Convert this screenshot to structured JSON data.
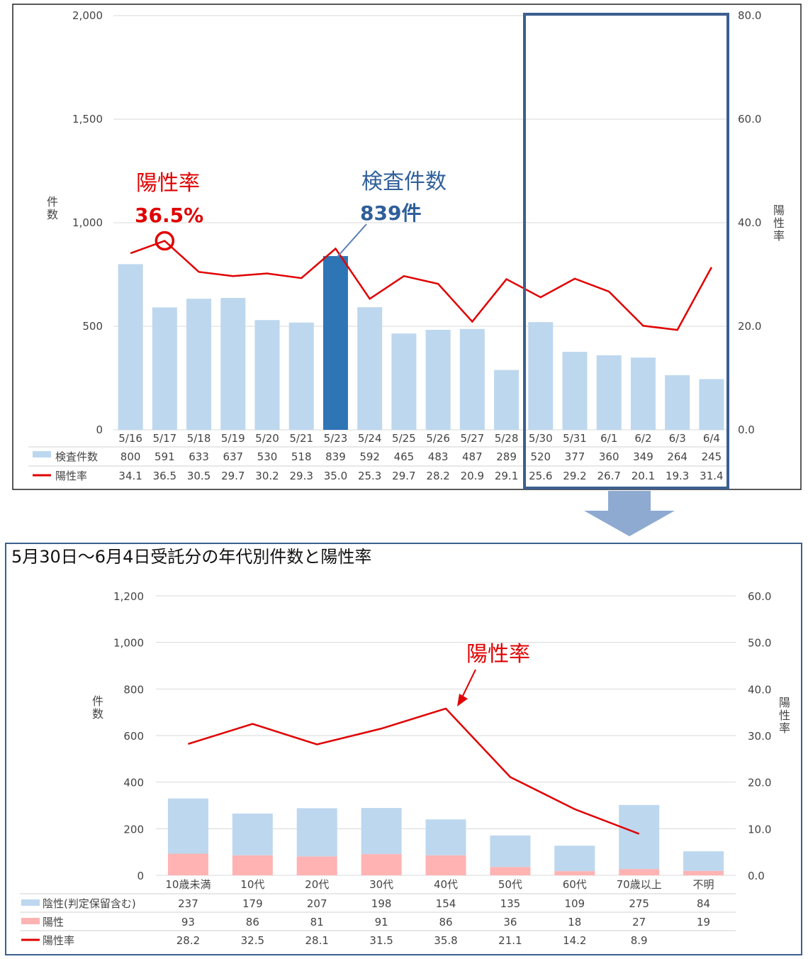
{
  "chart_data": [
    {
      "type": "bar",
      "categories": [
        "5/16",
        "5/17",
        "5/18",
        "5/19",
        "5/20",
        "5/21",
        "5/23",
        "5/24",
        "5/25",
        "5/26",
        "5/27",
        "5/28",
        "5/30",
        "5/31",
        "6/1",
        "6/2",
        "6/3",
        "6/4"
      ],
      "series": [
        {
          "name": "検査件数",
          "type": "bar",
          "axis": "left",
          "color": "#bdd7ee",
          "highlight_color": "#2e75b6",
          "values": [
            800,
            591,
            633,
            637,
            530,
            518,
            839,
            592,
            465,
            483,
            487,
            289,
            520,
            377,
            360,
            349,
            264,
            245
          ]
        },
        {
          "name": "陽性率",
          "type": "line",
          "axis": "right",
          "color": "#e00000",
          "values": [
            34.1,
            36.5,
            30.5,
            29.7,
            30.2,
            29.3,
            35.0,
            25.3,
            29.7,
            28.2,
            20.9,
            29.1,
            25.6,
            29.2,
            26.7,
            20.1,
            19.3,
            31.4
          ]
        }
      ],
      "table_values": {
        "counts": [
          "800",
          "591",
          "633",
          "637",
          "530",
          "518",
          "839",
          "592",
          "465",
          "483",
          "487",
          "289",
          "520",
          "377",
          "360",
          "349",
          "264",
          "245"
        ],
        "rates": [
          "34.1",
          "36.5",
          "30.5",
          "29.7",
          "30.2",
          "29.3",
          "35.0",
          "25.3",
          "29.7",
          "28.2",
          "20.9",
          "29.1",
          "25.6",
          "29.2",
          "26.7",
          "20.1",
          "19.3",
          "31.4"
        ]
      },
      "highlight_index": 6,
      "highlight_range": [
        "5/30",
        "6/4"
      ],
      "ylim_left": [
        0,
        2000
      ],
      "ylim_right": [
        0,
        80
      ],
      "yticks_left": [
        "0",
        "500",
        "1,000",
        "1,500",
        "2,000"
      ],
      "yticks_right": [
        "0.0",
        "20.0",
        "40.0",
        "60.0",
        "80.0"
      ],
      "ylabel_left": "件数",
      "ylabel_right": "陽性率",
      "grid": true,
      "annotations": {
        "rate_label": "陽性率",
        "rate_value": "36.5%",
        "count_label": "検査件数",
        "count_value": "839件"
      }
    },
    {
      "type": "bar",
      "title": "5月30日～6月4日受託分の年代別件数と陽性率",
      "categories": [
        "10歳未満",
        "10代",
        "20代",
        "30代",
        "40代",
        "50代",
        "60代",
        "70歳以上",
        "不明"
      ],
      "series": [
        {
          "name": "陰性(判定保留含む)",
          "type": "stacked-bar",
          "axis": "left",
          "color": "#bdd7ee",
          "values": [
            237,
            179,
            207,
            198,
            154,
            135,
            109,
            275,
            84
          ]
        },
        {
          "name": "陽性",
          "type": "stacked-bar",
          "axis": "left",
          "color": "#ffb3b3",
          "values": [
            93,
            86,
            81,
            91,
            86,
            36,
            18,
            27,
            19
          ]
        },
        {
          "name": "陽性率",
          "type": "line",
          "axis": "right",
          "color": "#e00000",
          "values": [
            28.2,
            32.5,
            28.1,
            31.5,
            35.8,
            21.1,
            14.2,
            8.9,
            null
          ]
        }
      ],
      "table_values": {
        "negative": [
          "237",
          "179",
          "207",
          "198",
          "154",
          "135",
          "109",
          "275",
          "84"
        ],
        "positive": [
          "93",
          "86",
          "81",
          "91",
          "86",
          "36",
          "18",
          "27",
          "19"
        ],
        "rates": [
          "28.2",
          "32.5",
          "28.1",
          "31.5",
          "35.8",
          "21.1",
          "14.2",
          "8.9",
          ""
        ]
      },
      "ylim_left": [
        0,
        1200
      ],
      "ylim_right": [
        0,
        60
      ],
      "yticks_left": [
        "0",
        "200",
        "400",
        "600",
        "800",
        "1,000",
        "1,200"
      ],
      "yticks_right": [
        "0.0",
        "10.0",
        "20.0",
        "30.0",
        "40.0",
        "50.0",
        "60.0"
      ],
      "ylabel_left": "件数",
      "ylabel_right": "陽性率",
      "grid": true,
      "annotations": {
        "rate_label": "陽性率"
      }
    }
  ],
  "colors": {
    "frame_top": "#222222",
    "highlight_box": "#3c5f8f",
    "frame_bottom": "#3c5f8f",
    "arrow": "#8eaad0",
    "annotation_red": "#e00000",
    "annotation_blue": "#2f5f9a"
  }
}
